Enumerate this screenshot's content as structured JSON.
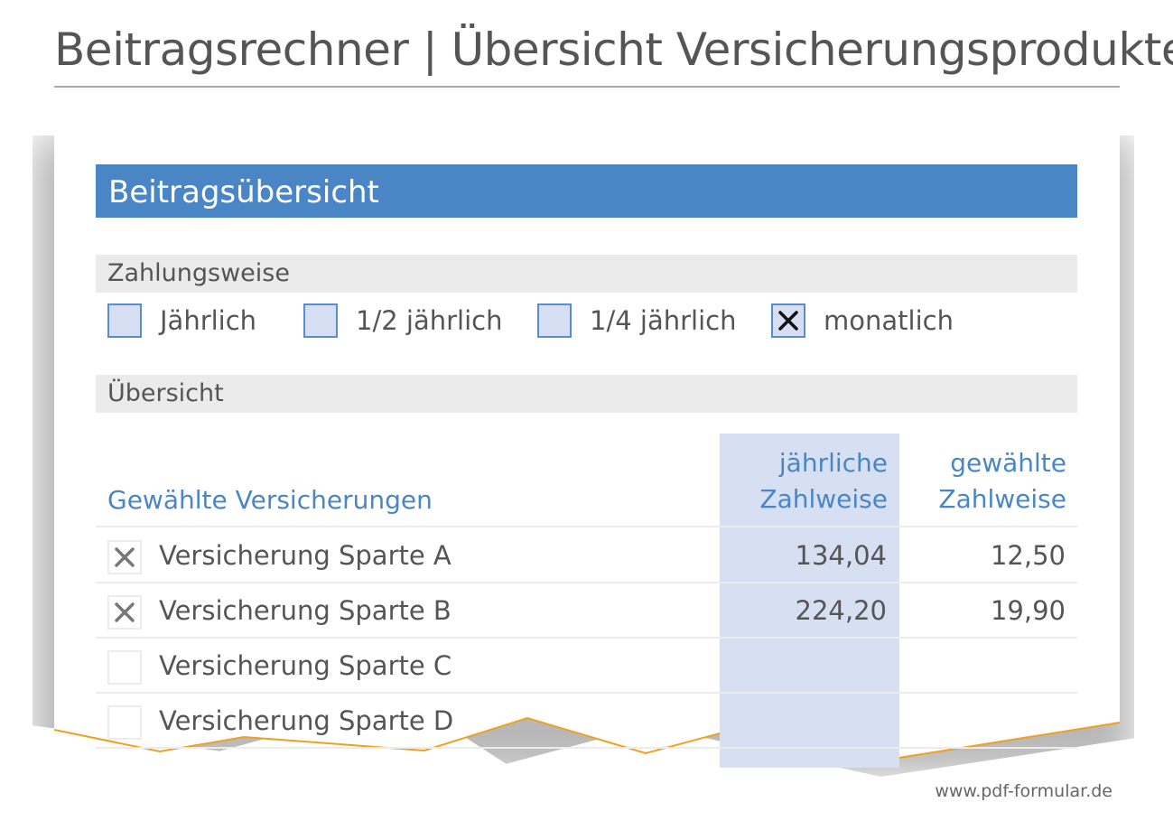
{
  "page": {
    "title": "Beitragsrechner | Übersicht Versicherungsprodukte",
    "footer_url": "www.pdf-formular.de"
  },
  "form": {
    "section_title": "Beitragsübersicht",
    "payment": {
      "title": "Zahlungsweise",
      "options": [
        {
          "label": "Jährlich",
          "checked": false
        },
        {
          "label": "1/2 jährlich",
          "checked": false
        },
        {
          "label": "1/4 jährlich",
          "checked": false
        },
        {
          "label": "monatlich",
          "checked": true
        }
      ]
    },
    "overview": {
      "title": "Übersicht",
      "columns": {
        "insurances": "Gewählte Versicherungen",
        "annual_line1": "jährliche",
        "annual_line2": "Zahlweise",
        "selected_line1": "gewählte",
        "selected_line2": "Zahlweise"
      },
      "rows": [
        {
          "name": "Versicherung Sparte A",
          "checked": true,
          "annual": "134,04",
          "selected": "12,50"
        },
        {
          "name": "Versicherung Sparte B",
          "checked": true,
          "annual": "224,20",
          "selected": "19,90"
        },
        {
          "name": "Versicherung Sparte C",
          "checked": false,
          "annual": "",
          "selected": ""
        },
        {
          "name": "Versicherung Sparte D",
          "checked": false,
          "annual": "",
          "selected": ""
        }
      ]
    }
  },
  "colors": {
    "accent": "#4a86c5",
    "checkbox_fill": "#d5def2",
    "column_highlight": "#d7e0f2",
    "tear_edge": "#f0a020"
  },
  "icons": {
    "checkbox_mark": "x-mark-icon"
  }
}
